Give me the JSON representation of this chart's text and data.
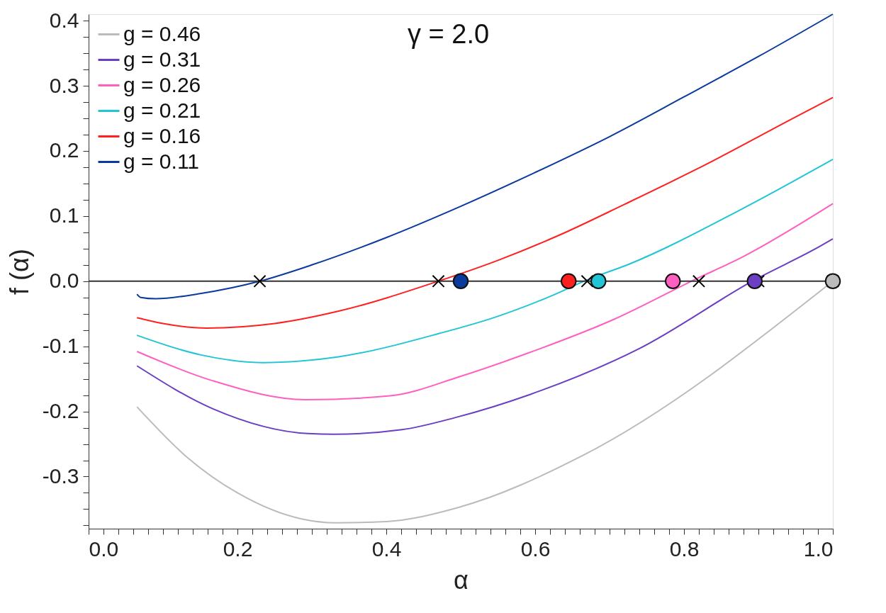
{
  "chart_data": {
    "type": "line",
    "xlabel": "α",
    "ylabel": "f (α)",
    "annotations": [
      "γ = 2.0"
    ],
    "legend": "top left",
    "grid": false,
    "xlim": [
      0,
      1.0
    ],
    "ylim": [
      -0.38,
      0.41
    ],
    "xticks": [
      {
        "value": 0,
        "label": "0.0"
      },
      {
        "value": 0.02,
        "label": null
      },
      {
        "value": 0.04,
        "label": null
      },
      {
        "value": 0.06,
        "label": null
      },
      {
        "value": 0.08,
        "label": null
      },
      {
        "value": 0.1,
        "label": null
      },
      {
        "value": 0.12,
        "label": null
      },
      {
        "value": 0.14,
        "label": null
      },
      {
        "value": 0.16,
        "label": null
      },
      {
        "value": 0.18,
        "label": null
      },
      {
        "value": 0.2,
        "label": "0.2"
      },
      {
        "value": 0.22,
        "label": null
      },
      {
        "value": 0.24,
        "label": null
      },
      {
        "value": 0.26,
        "label": null
      },
      {
        "value": 0.28,
        "label": null
      },
      {
        "value": 0.3,
        "label": null
      },
      {
        "value": 0.32,
        "label": null
      },
      {
        "value": 0.34,
        "label": null
      },
      {
        "value": 0.36,
        "label": null
      },
      {
        "value": 0.38,
        "label": null
      },
      {
        "value": 0.4,
        "label": "0.4"
      },
      {
        "value": 0.42,
        "label": null
      },
      {
        "value": 0.44,
        "label": null
      },
      {
        "value": 0.46,
        "label": null
      },
      {
        "value": 0.48,
        "label": null
      },
      {
        "value": 0.5,
        "label": null
      },
      {
        "value": 0.52,
        "label": null
      },
      {
        "value": 0.54,
        "label": null
      },
      {
        "value": 0.56,
        "label": null
      },
      {
        "value": 0.58,
        "label": null
      },
      {
        "value": 0.6,
        "label": "0.6"
      },
      {
        "value": 0.62,
        "label": null
      },
      {
        "value": 0.64,
        "label": null
      },
      {
        "value": 0.66,
        "label": null
      },
      {
        "value": 0.68,
        "label": null
      },
      {
        "value": 0.7,
        "label": null
      },
      {
        "value": 0.72,
        "label": null
      },
      {
        "value": 0.74,
        "label": null
      },
      {
        "value": 0.76,
        "label": null
      },
      {
        "value": 0.78,
        "label": null
      },
      {
        "value": 0.8,
        "label": "0.8"
      },
      {
        "value": 0.82,
        "label": null
      },
      {
        "value": 0.84,
        "label": null
      },
      {
        "value": 0.86,
        "label": null
      },
      {
        "value": 0.88,
        "label": null
      },
      {
        "value": 0.9,
        "label": null
      },
      {
        "value": 0.92,
        "label": null
      },
      {
        "value": 0.94,
        "label": null
      },
      {
        "value": 0.96,
        "label": null
      },
      {
        "value": 0.98,
        "label": null
      },
      {
        "value": 1.0,
        "label": "1.0"
      }
    ],
    "yticks": [
      {
        "value": -0.375,
        "label": null
      },
      {
        "value": -0.35,
        "label": null
      },
      {
        "value": -0.325,
        "label": null
      },
      {
        "value": -0.3,
        "label": "-0.3"
      },
      {
        "value": -0.275,
        "label": null
      },
      {
        "value": -0.25,
        "label": null
      },
      {
        "value": -0.225,
        "label": null
      },
      {
        "value": -0.2,
        "label": "-0.2"
      },
      {
        "value": -0.175,
        "label": null
      },
      {
        "value": -0.15,
        "label": null
      },
      {
        "value": -0.125,
        "label": null
      },
      {
        "value": -0.1,
        "label": "-0.1"
      },
      {
        "value": -0.075,
        "label": null
      },
      {
        "value": -0.05,
        "label": null
      },
      {
        "value": -0.025,
        "label": null
      },
      {
        "value": 0,
        "label": "0.0"
      },
      {
        "value": 0.025,
        "label": null
      },
      {
        "value": 0.05,
        "label": null
      },
      {
        "value": 0.075,
        "label": null
      },
      {
        "value": 0.1,
        "label": "0.1"
      },
      {
        "value": 0.125,
        "label": null
      },
      {
        "value": 0.15,
        "label": null
      },
      {
        "value": 0.175,
        "label": null
      },
      {
        "value": 0.2,
        "label": "0.2"
      },
      {
        "value": 0.225,
        "label": null
      },
      {
        "value": 0.25,
        "label": null
      },
      {
        "value": 0.275,
        "label": null
      },
      {
        "value": 0.3,
        "label": "0.3"
      },
      {
        "value": 0.325,
        "label": null
      },
      {
        "value": 0.35,
        "label": null
      },
      {
        "value": 0.375,
        "label": null
      },
      {
        "value": 0.4,
        "label": "0.4"
      }
    ],
    "ref_lines": [
      {
        "axis": "y",
        "value": 0,
        "color": "#333333"
      }
    ],
    "series": [
      {
        "name": "g = 0.46",
        "color": "#bbbbbb",
        "x": [
          0.065,
          0.132,
          0.2,
          0.286,
          0.333,
          0.4,
          0.498,
          0.665,
          1.0
        ],
        "values": [
          -0.193,
          -0.27,
          -0.325,
          -0.365,
          -0.371,
          -0.369,
          -0.347,
          -0.267,
          0.0
        ]
      },
      {
        "name": "g = 0.31",
        "color": "#6a3fc4",
        "x": [
          0.065,
          0.167,
          0.295,
          0.33,
          0.421,
          0.494,
          0.593,
          0.739,
          0.895,
          0.985,
          1.0
        ],
        "values": [
          -0.13,
          -0.196,
          -0.234,
          -0.235,
          -0.228,
          -0.209,
          -0.174,
          -0.104,
          0.002,
          0.055,
          0.065
        ]
      },
      {
        "name": "g = 0.26",
        "color": "#ff5fbf",
        "x": [
          0.065,
          0.167,
          0.292,
          0.405,
          0.5,
          0.589,
          0.705,
          0.81,
          0.88,
          1.0
        ],
        "values": [
          -0.108,
          -0.153,
          -0.182,
          -0.176,
          -0.146,
          -0.111,
          -0.059,
          0.0,
          0.038,
          0.119
        ]
      },
      {
        "name": "g = 0.21",
        "color": "#22c5d6",
        "x": [
          0.065,
          0.15,
          0.234,
          0.336,
          0.472,
          0.547,
          0.625,
          0.67,
          0.728,
          0.873,
          1.0
        ],
        "values": [
          -0.083,
          -0.113,
          -0.125,
          -0.116,
          -0.08,
          -0.055,
          -0.021,
          0.002,
          0.027,
          0.108,
          0.187
        ]
      },
      {
        "name": "g = 0.16",
        "color": "#ff2020",
        "x": [
          0.065,
          0.1,
          0.159,
          0.25,
          0.336,
          0.47,
          0.55,
          0.633,
          0.72,
          0.817,
          0.953,
          1.0
        ],
        "values": [
          -0.056,
          -0.065,
          -0.072,
          -0.065,
          -0.046,
          0.0,
          0.032,
          0.071,
          0.118,
          0.172,
          0.254,
          0.282
        ]
      },
      {
        "name": "g = 0.11",
        "color": "#0a3a9e",
        "x": [
          0.065,
          0.07,
          0.09,
          0.15,
          0.23,
          0.3,
          0.4,
          0.5,
          0.6,
          0.7,
          0.8,
          0.9,
          1.0
        ],
        "values": [
          -0.02,
          -0.025,
          -0.027,
          -0.019,
          0.0,
          0.025,
          0.067,
          0.115,
          0.167,
          0.222,
          0.283,
          0.345,
          0.41
        ]
      },
      {
        "type": "scatter",
        "marker": "cross",
        "color": "#000000",
        "x": [
          0.23,
          0.47,
          0.67,
          0.82,
          0.9,
          1.0
        ],
        "values": [
          0,
          0,
          0,
          0,
          0,
          0
        ]
      },
      {
        "type": "scatter",
        "marker": "circle",
        "colors": [
          "#0a3a9e",
          "#ff2020",
          "#22c5d6",
          "#ff5fbf",
          "#6a3fc4",
          "#bbbbbb"
        ],
        "x": [
          0.5,
          0.645,
          0.685,
          0.785,
          0.895,
          1.0
        ],
        "values": [
          0,
          0,
          0,
          0,
          0,
          0
        ]
      }
    ]
  }
}
